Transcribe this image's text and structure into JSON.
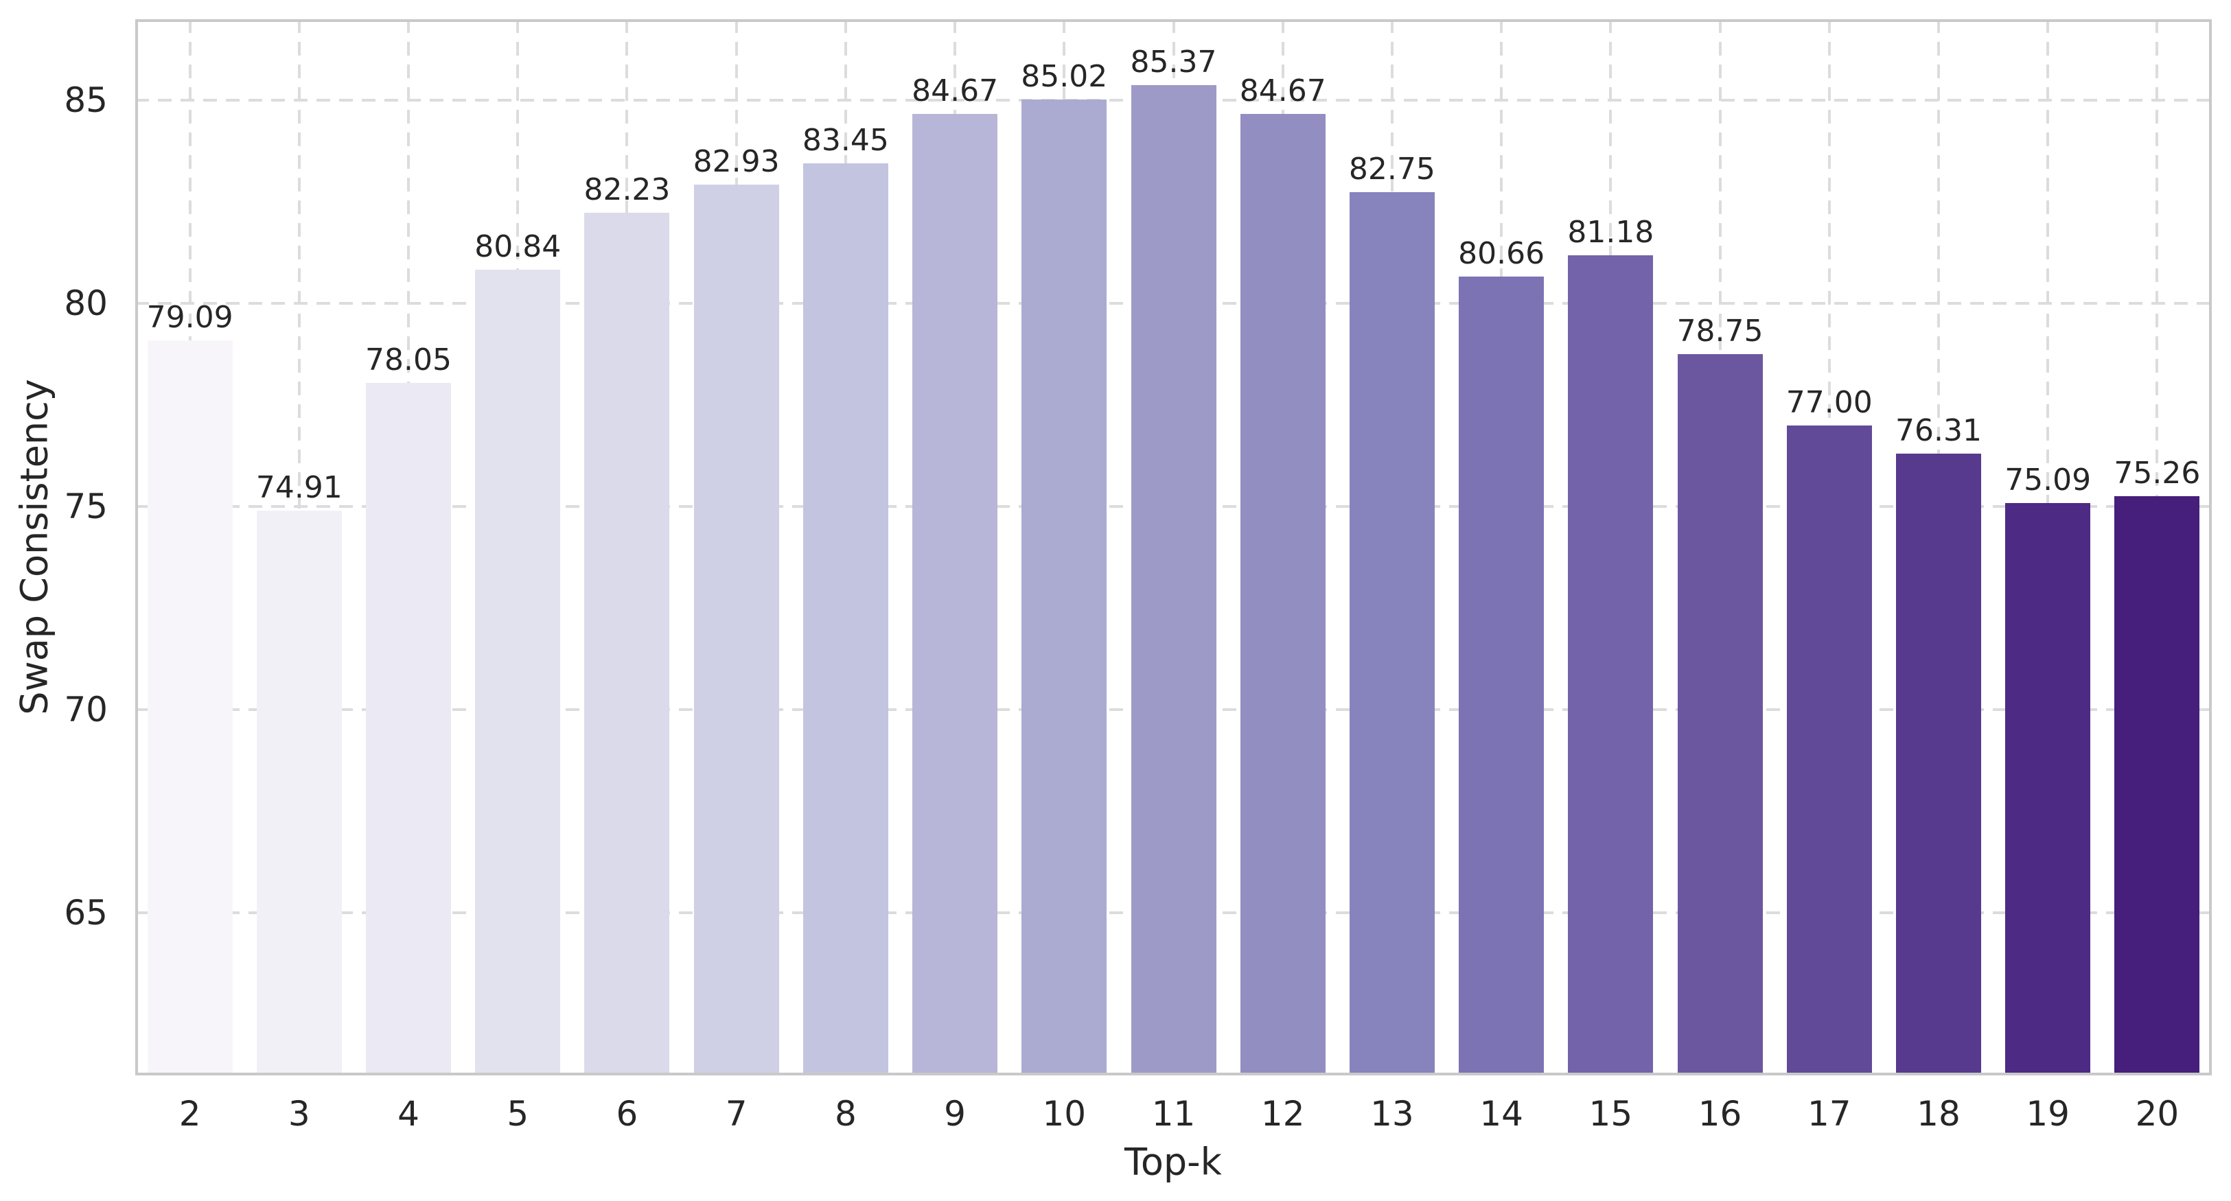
{
  "figure": {
    "background": "#ffffff",
    "text_color": "#262626",
    "grid_color": "#dcdcdc",
    "spine_color": "#c9c9c9"
  },
  "chart_data": {
    "type": "bar",
    "title": "",
    "xlabel": "Top-k",
    "ylabel": "Swap Consistency",
    "categories": [
      "2",
      "3",
      "4",
      "5",
      "6",
      "7",
      "8",
      "9",
      "10",
      "11",
      "12",
      "13",
      "14",
      "15",
      "16",
      "17",
      "18",
      "19",
      "20"
    ],
    "values": [
      79.09,
      74.91,
      78.05,
      80.84,
      82.23,
      82.93,
      83.45,
      84.67,
      85.02,
      85.37,
      84.67,
      82.75,
      80.66,
      81.18,
      78.75,
      77.0,
      76.31,
      75.09,
      75.26
    ],
    "value_labels": [
      "79.09",
      "74.91",
      "78.05",
      "80.84",
      "82.23",
      "82.93",
      "83.45",
      "84.67",
      "85.02",
      "85.37",
      "84.67",
      "82.75",
      "80.66",
      "81.18",
      "78.75",
      "77.00",
      "76.31",
      "75.09",
      "75.26"
    ],
    "bar_colors": [
      "#f7f5fa",
      "#f2f0f7",
      "#ebe9f3",
      "#e2e2ef",
      "#dadaeb",
      "#cfcfe5",
      "#c3c4df",
      "#b7b6d8",
      "#abaad0",
      "#9e9ac8",
      "#928ec2",
      "#8683bd",
      "#7c73b4",
      "#7263ab",
      "#6b57a0",
      "#614a97",
      "#573a8d",
      "#4d2a84",
      "#461e7b"
    ],
    "yticks": [
      65,
      70,
      75,
      80,
      85
    ],
    "ylim": [
      61,
      87
    ],
    "grid": "dashed",
    "legend": "none",
    "bar_width_fraction": 0.78
  }
}
